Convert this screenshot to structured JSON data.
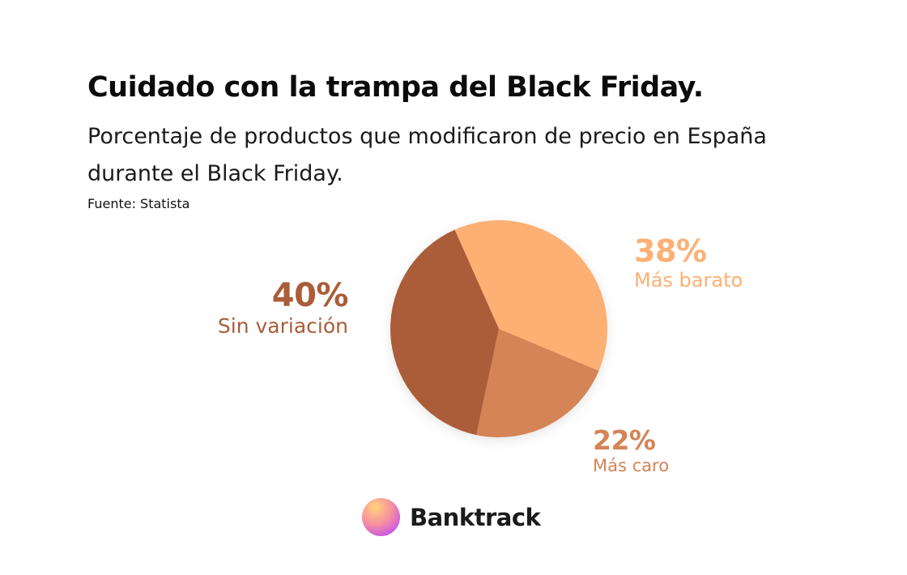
{
  "title": "Cuidado con la trampa del Black Friday.",
  "subtitle": "Porcentaje de productos que modificaron de precio en España durante el Black Friday.",
  "source": "Fuente: Statista",
  "brand": {
    "name": "Banktrack",
    "logo_icon": "gradient-circle-icon"
  },
  "chart_data": {
    "type": "pie",
    "title": "Cuidado con la trampa del Black Friday.",
    "categories": [
      "Más barato",
      "Más caro",
      "Sin variación"
    ],
    "values": [
      38,
      22,
      40
    ],
    "value_labels": [
      "38%",
      "22%",
      "40%"
    ],
    "colors": [
      "#fcb073",
      "#d48456",
      "#aa5d38"
    ],
    "legend": "none"
  }
}
